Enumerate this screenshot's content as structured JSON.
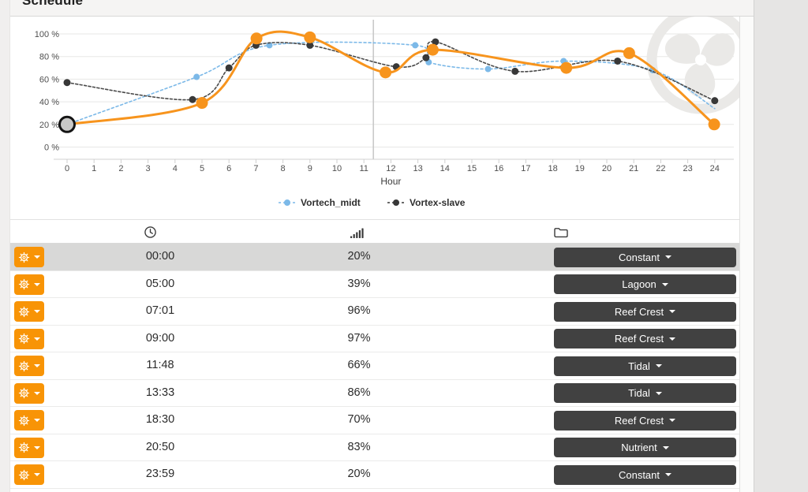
{
  "window": {
    "title": "Schedule"
  },
  "theme": {
    "accent_orange": "#F89406",
    "chart_orange": "#F7941D",
    "chart_blue": "#7CB9E8",
    "chart_dark": "#3F3F3F",
    "mode_button_bg": "#414141",
    "selected_row_bg": "#D8D8D7",
    "watermark_gray": "#EAE9E7"
  },
  "chart_data": {
    "type": "line",
    "xlabel": "Hour",
    "x_ticks": [
      0,
      1,
      2,
      3,
      4,
      5,
      6,
      7,
      8,
      9,
      10,
      11,
      12,
      13,
      14,
      15,
      16,
      17,
      18,
      19,
      20,
      21,
      22,
      23,
      24
    ],
    "y_ticks": [
      0,
      20,
      40,
      60,
      80,
      100
    ],
    "y_tick_suffix": " %",
    "xlim": [
      0,
      24
    ],
    "ylim": [
      0,
      107
    ],
    "grid": true,
    "current_time_hour": 11.35,
    "legend_position": "bottom",
    "series": [
      {
        "name": "Vortech_midt",
        "color": "#7CB9E8",
        "width": 1.6,
        "dash": "3,3",
        "dot_r": 4,
        "in_legend": true,
        "points": [
          [
            0,
            20
          ],
          [
            4.8,
            62
          ],
          [
            7.5,
            90
          ],
          [
            12.9,
            90
          ],
          [
            13.4,
            75
          ],
          [
            15.6,
            69
          ],
          [
            18.4,
            76
          ],
          [
            21.7,
            68
          ],
          [
            24,
            34
          ]
        ],
        "no_dot_indices": [
          0,
          8
        ]
      },
      {
        "name": "Vortex-slave",
        "color": "#4A4A4A",
        "dot_color": "#383838",
        "width": 1.6,
        "dash": "3,2.5",
        "dot_r": 4.5,
        "in_legend": true,
        "points": [
          [
            0,
            57
          ],
          [
            4.65,
            42
          ],
          [
            6,
            70
          ],
          [
            7,
            90
          ],
          [
            9,
            90
          ],
          [
            12.2,
            71
          ],
          [
            13.3,
            79
          ],
          [
            13.65,
            93
          ],
          [
            16.6,
            67
          ],
          [
            20.4,
            76
          ],
          [
            24,
            41
          ]
        ],
        "no_dot_indices": []
      },
      {
        "name": "Schedule",
        "color": "#F7941D",
        "width": 3,
        "dash": null,
        "dot_r": 7.5,
        "in_legend": false,
        "points": [
          [
            0,
            20
          ],
          [
            5,
            39
          ],
          [
            7.02,
            96
          ],
          [
            9,
            97
          ],
          [
            11.8,
            66
          ],
          [
            13.55,
            86
          ],
          [
            18.5,
            70
          ],
          [
            20.83,
            83
          ],
          [
            23.98,
            20
          ]
        ],
        "no_dot_indices": [],
        "selected_index": 0,
        "selected_fill": "#C9C9C8",
        "selected_stroke": "#141414"
      }
    ],
    "legend": [
      {
        "label": "Vortech_midt",
        "color": "#7CB9E8"
      },
      {
        "label": "Vortex-slave",
        "color": "#383838"
      }
    ]
  },
  "table": {
    "column_icons": [
      "clock-icon",
      "signal-strength-icon",
      "folder-icon"
    ],
    "rows": [
      {
        "time": "00:00",
        "power": "20%",
        "mode": "Constant",
        "selected": true
      },
      {
        "time": "05:00",
        "power": "39%",
        "mode": "Lagoon",
        "selected": false
      },
      {
        "time": "07:01",
        "power": "96%",
        "mode": "Reef Crest",
        "selected": false
      },
      {
        "time": "09:00",
        "power": "97%",
        "mode": "Reef Crest",
        "selected": false
      },
      {
        "time": "11:48",
        "power": "66%",
        "mode": "Tidal",
        "selected": false
      },
      {
        "time": "13:33",
        "power": "86%",
        "mode": "Tidal",
        "selected": false
      },
      {
        "time": "18:30",
        "power": "70%",
        "mode": "Reef Crest",
        "selected": false
      },
      {
        "time": "20:50",
        "power": "83%",
        "mode": "Nutrient",
        "selected": false
      },
      {
        "time": "23:59",
        "power": "20%",
        "mode": "Constant",
        "selected": false
      }
    ]
  }
}
